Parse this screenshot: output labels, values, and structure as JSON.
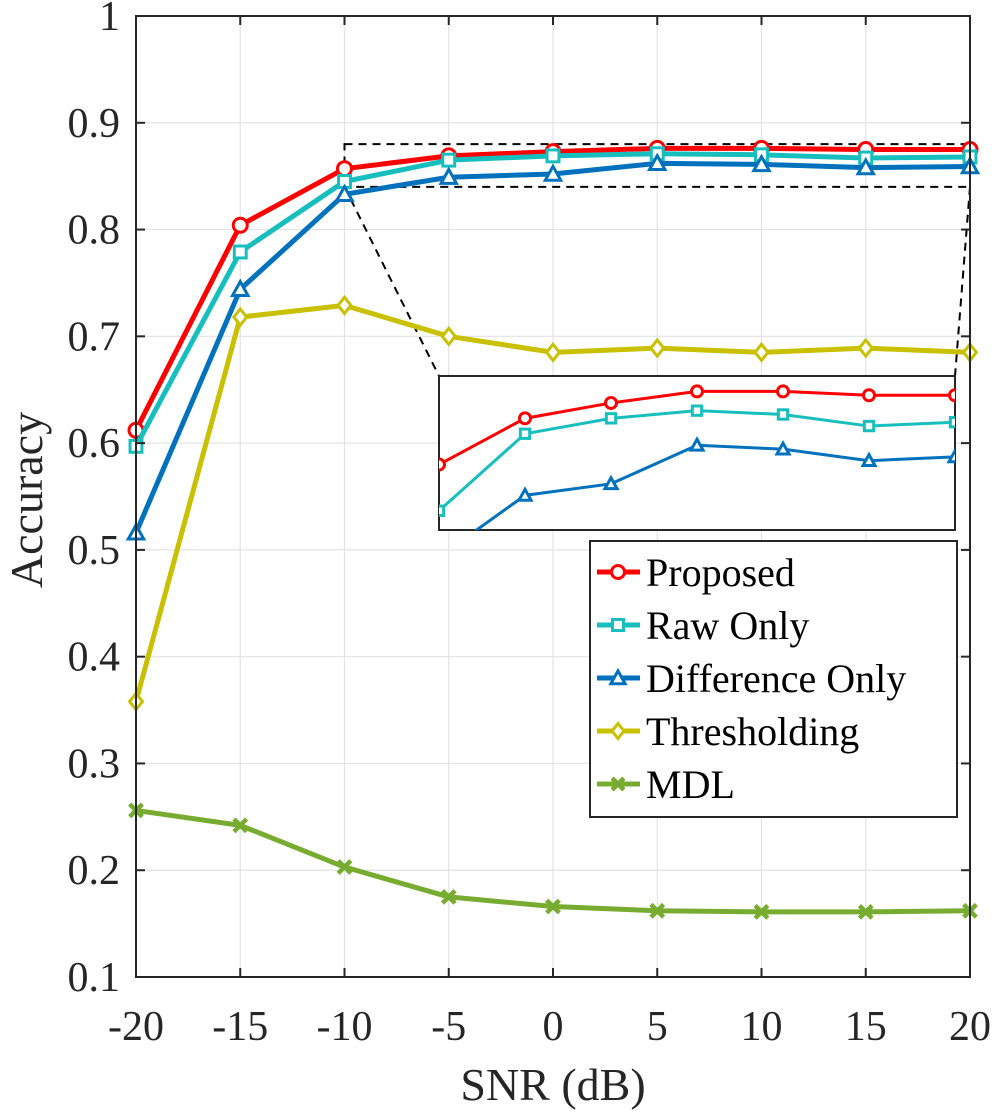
{
  "chart_data": {
    "type": "line",
    "xlabel": "SNR (dB)",
    "ylabel": "Accuracy",
    "x": [
      -20,
      -15,
      -10,
      -5,
      0,
      5,
      10,
      15,
      20
    ],
    "xlim": [
      -20,
      20
    ],
    "ylim": [
      0.1,
      1.0
    ],
    "x_ticks": [
      "-20",
      "-15",
      "-10",
      "-5",
      "0",
      "5",
      "10",
      "15",
      "20"
    ],
    "y_ticks": [
      "0.1",
      "0.2",
      "0.3",
      "0.4",
      "0.5",
      "0.6",
      "0.7",
      "0.8",
      "0.9",
      "1"
    ],
    "grid": true,
    "legend_position": "middle-right",
    "series": [
      {
        "name": "Proposed",
        "color": "#ff0000",
        "marker": "circle",
        "values": [
          0.612,
          0.804,
          0.857,
          0.869,
          0.873,
          0.876,
          0.876,
          0.875,
          0.875
        ]
      },
      {
        "name": "Raw Only",
        "color": "#17bebe",
        "marker": "square",
        "values": [
          0.597,
          0.779,
          0.845,
          0.865,
          0.869,
          0.871,
          0.87,
          0.867,
          0.868
        ]
      },
      {
        "name": "Difference Only",
        "color": "#0072bd",
        "marker": "triangle",
        "values": [
          0.516,
          0.744,
          0.833,
          0.849,
          0.852,
          0.862,
          0.861,
          0.858,
          0.859
        ]
      },
      {
        "name": "Thresholding",
        "color": "#c8c000",
        "marker": "diamond",
        "values": [
          0.358,
          0.718,
          0.729,
          0.7,
          0.685,
          0.689,
          0.685,
          0.689,
          0.685
        ]
      },
      {
        "name": "MDL",
        "color": "#77ac30",
        "marker": "x",
        "values": [
          0.256,
          0.242,
          0.203,
          0.175,
          0.166,
          0.162,
          0.161,
          0.161,
          0.162
        ]
      }
    ],
    "inset": {
      "description": "zoomed view of the dashed region",
      "xlim": [
        -10,
        20
      ],
      "ylim": [
        0.84,
        0.88
      ],
      "series": [
        "Proposed",
        "Raw Only",
        "Difference Only"
      ]
    }
  }
}
